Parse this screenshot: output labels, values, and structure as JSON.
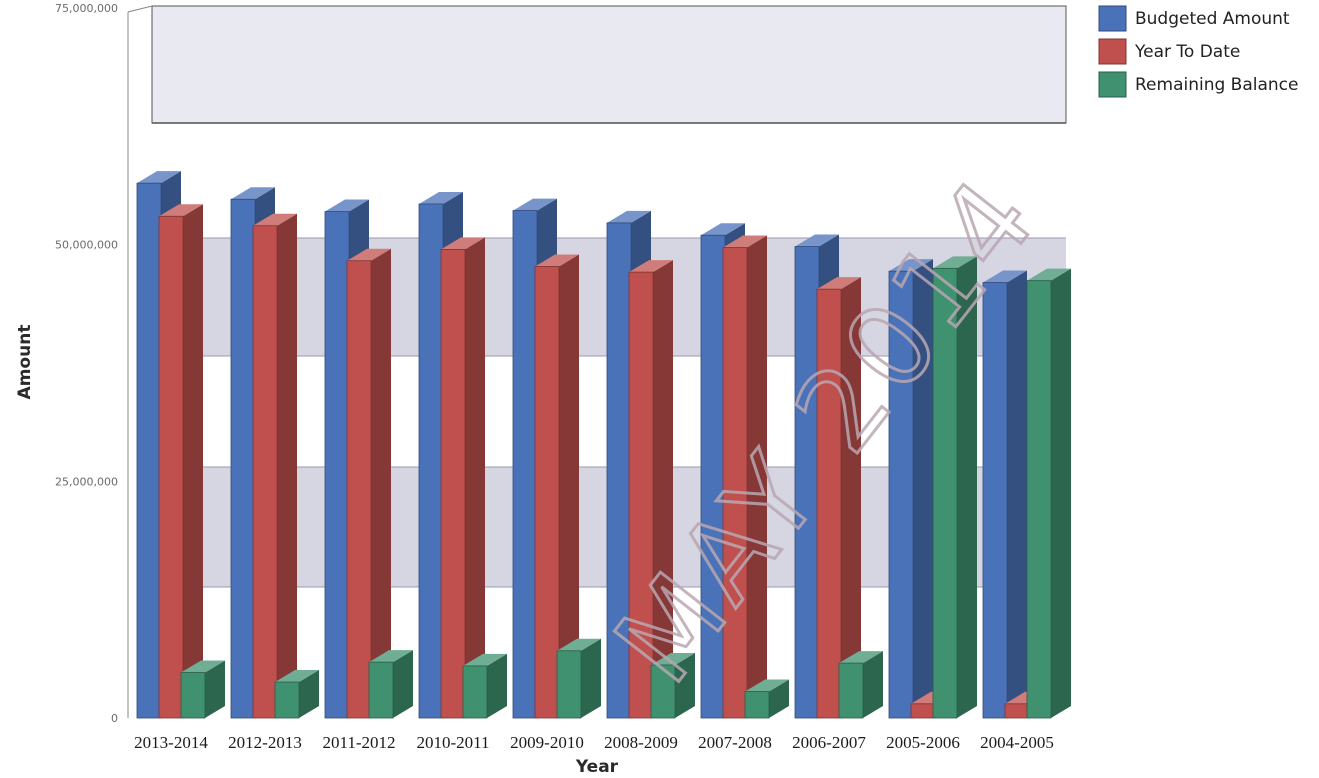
{
  "chart_data": {
    "type": "bar",
    "title": "",
    "xlabel": "Year",
    "ylabel": "Amount",
    "categories": [
      "2013-2014",
      "2012-2013",
      "2011-2012",
      "2010-2011",
      "2009-2010",
      "2008-2009",
      "2007-2008",
      "2006-2007",
      "2005-2006",
      "2004-2005"
    ],
    "series": [
      {
        "name": "Budgeted Amount",
        "color": "#4a72b8",
        "values": [
          56500000,
          54800000,
          53500000,
          54300000,
          53600000,
          52300000,
          51000000,
          49800000,
          47200000,
          46000000
        ]
      },
      {
        "name": "Year To Date",
        "color": "#c0504d",
        "values": [
          53000000,
          52000000,
          48300000,
          49500000,
          47700000,
          47100000,
          49700000,
          45300000,
          1500000,
          1500000
        ]
      },
      {
        "name": "Remaining Balance",
        "color": "#3f9170",
        "values": [
          4800000,
          3800000,
          5900000,
          5500000,
          7100000,
          5600000,
          2800000,
          5800000,
          47500000,
          46200000
        ]
      }
    ],
    "y_ticks": [
      {
        "value": 0,
        "label": "0"
      },
      {
        "value": 25000000,
        "label": "25,000,000"
      },
      {
        "value": 50000000,
        "label": "50,000,000"
      },
      {
        "value": 75000000,
        "label": "75,000,000"
      }
    ],
    "ylim": [
      0,
      75000000
    ],
    "grid": true,
    "legend_position": "top-right",
    "watermark": "MAY 2014"
  }
}
